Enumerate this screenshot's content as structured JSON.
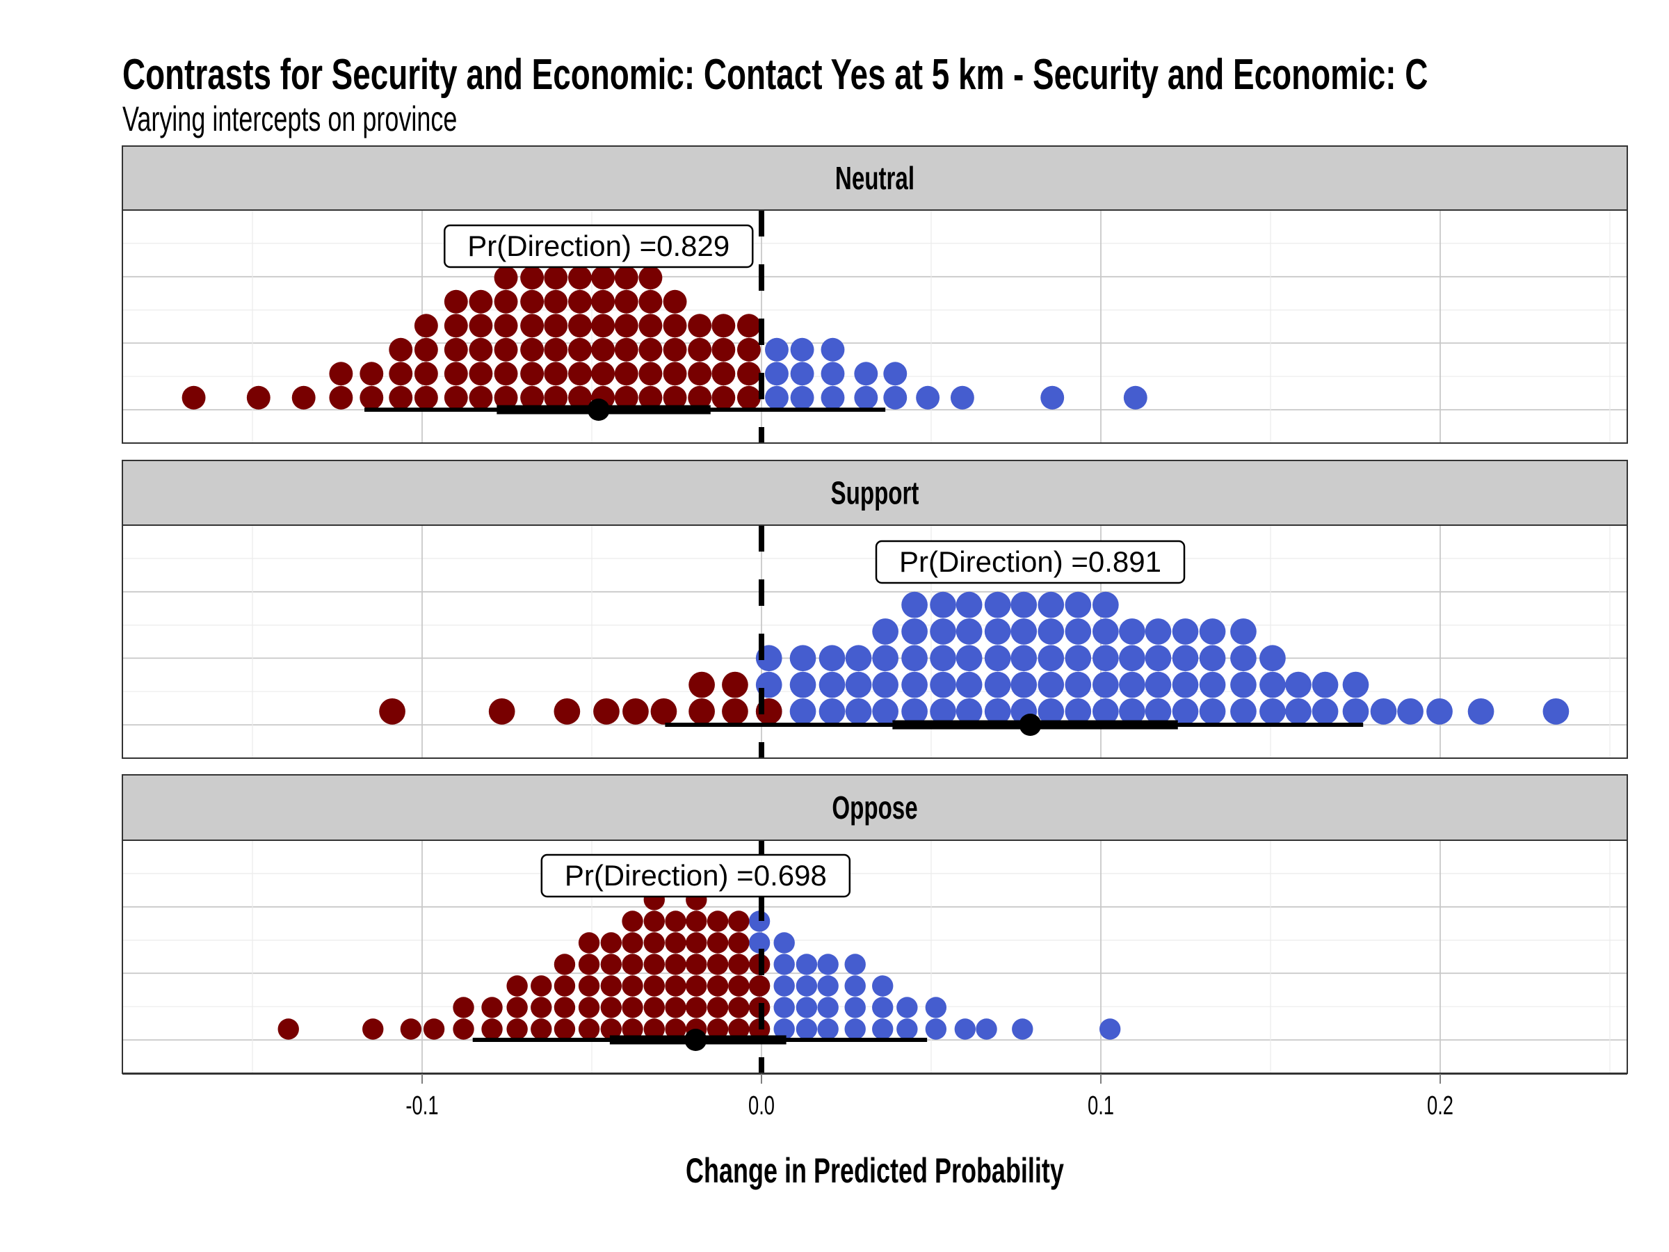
{
  "colors": {
    "negative": "#780000",
    "positive": "#455DCF",
    "strip_fill": "#CCCCCC",
    "interval": "#000000",
    "reference_line": "#000000"
  },
  "chart_data": {
    "type": "dotplot",
    "title": "Contrasts for Security and Economic: Contact Yes at 5 km - Security and Economic: C",
    "subtitle": "Varying intercepts on province",
    "xlabel": "Change in Predicted Probability",
    "ylabel": "",
    "xlim": [
      -0.19,
      0.253
    ],
    "x_ticks": [
      -0.1,
      0.0,
      0.1,
      0.2
    ],
    "x_tick_labels": [
      "-0.1",
      "0.0",
      "0.1",
      "0.2"
    ],
    "reference_line_x": 0.0,
    "grid": true,
    "legend": "none",
    "facets": [
      {
        "name": "Neutral",
        "label": "Pr(Direction) =0.829",
        "point": -0.048,
        "interval_inner": [
          -0.078,
          -0.015
        ],
        "interval_outer": [
          -0.117,
          0.0365
        ],
        "negative_bins": [
          {
            "x": -0.1673,
            "n": 1
          },
          {
            "x": -0.1482,
            "n": 1
          },
          {
            "x": -0.1349,
            "n": 1
          },
          {
            "x": -0.1239,
            "n": 2
          },
          {
            "x": -0.1149,
            "n": 2
          },
          {
            "x": -0.1063,
            "n": 3
          },
          {
            "x": -0.0988,
            "n": 4
          },
          {
            "x": -0.09,
            "n": 5
          },
          {
            "x": -0.0827,
            "n": 5
          },
          {
            "x": -0.0753,
            "n": 6
          },
          {
            "x": -0.0676,
            "n": 6
          },
          {
            "x": -0.0606,
            "n": 6
          },
          {
            "x": -0.0535,
            "n": 6
          },
          {
            "x": -0.0467,
            "n": 6
          },
          {
            "x": -0.0398,
            "n": 6
          },
          {
            "x": -0.0327,
            "n": 6
          },
          {
            "x": -0.0255,
            "n": 5
          },
          {
            "x": -0.0182,
            "n": 4
          },
          {
            "x": -0.0112,
            "n": 4
          },
          {
            "x": -0.0037,
            "n": 4
          }
        ],
        "positive_bins": [
          {
            "x": 0.0045,
            "n": 3
          },
          {
            "x": 0.012,
            "n": 3
          },
          {
            "x": 0.021,
            "n": 3
          },
          {
            "x": 0.0308,
            "n": 2
          },
          {
            "x": 0.0394,
            "n": 2
          },
          {
            "x": 0.049,
            "n": 1
          },
          {
            "x": 0.0592,
            "n": 1
          },
          {
            "x": 0.0857,
            "n": 1
          },
          {
            "x": 0.1102,
            "n": 1
          }
        ]
      },
      {
        "name": "Support",
        "label": "Pr(Direction) =0.891",
        "point": 0.0792,
        "interval_inner": [
          0.0386,
          0.1227
        ],
        "interval_outer": [
          -0.0284,
          0.1773
        ],
        "negative_bins": [
          {
            "x": -0.1088,
            "n": 1
          },
          {
            "x": -0.0765,
            "n": 1
          },
          {
            "x": -0.0573,
            "n": 1
          },
          {
            "x": -0.0457,
            "n": 1
          },
          {
            "x": -0.0371,
            "n": 1
          },
          {
            "x": -0.0288,
            "n": 1
          },
          {
            "x": -0.0176,
            "n": 2
          },
          {
            "x": -0.0078,
            "n": 2
          },
          {
            "x": 0.0022,
            "n": 1
          }
        ],
        "positive_bins": [
          {
            "x": 0.0022,
            "n": 3
          },
          {
            "x": 0.0122,
            "n": 3
          },
          {
            "x": 0.0208,
            "n": 3
          },
          {
            "x": 0.0286,
            "n": 3
          },
          {
            "x": 0.0365,
            "n": 4
          },
          {
            "x": 0.0451,
            "n": 5
          },
          {
            "x": 0.0535,
            "n": 5
          },
          {
            "x": 0.0612,
            "n": 5
          },
          {
            "x": 0.0696,
            "n": 5
          },
          {
            "x": 0.0773,
            "n": 5
          },
          {
            "x": 0.0853,
            "n": 5
          },
          {
            "x": 0.0933,
            "n": 5
          },
          {
            "x": 0.1014,
            "n": 5
          },
          {
            "x": 0.1092,
            "n": 4
          },
          {
            "x": 0.1169,
            "n": 4
          },
          {
            "x": 0.1249,
            "n": 4
          },
          {
            "x": 0.1329,
            "n": 4
          },
          {
            "x": 0.142,
            "n": 4
          },
          {
            "x": 0.1506,
            "n": 3
          },
          {
            "x": 0.1582,
            "n": 2
          },
          {
            "x": 0.1661,
            "n": 2
          },
          {
            "x": 0.1751,
            "n": 2
          },
          {
            "x": 0.1833,
            "n": 1
          },
          {
            "x": 0.1912,
            "n": 1
          },
          {
            "x": 0.1998,
            "n": 1
          },
          {
            "x": 0.212,
            "n": 1
          },
          {
            "x": 0.2341,
            "n": 1
          }
        ]
      },
      {
        "name": "Oppose",
        "label": "Pr(Direction) =0.698",
        "point": -0.0194,
        "interval_inner": [
          -0.0447,
          0.0073
        ],
        "interval_outer": [
          -0.0851,
          0.0488
        ],
        "negative_bins": [
          {
            "x": -0.1394,
            "n": 1
          },
          {
            "x": -0.1145,
            "n": 1
          },
          {
            "x": -0.1033,
            "n": 1
          },
          {
            "x": -0.0965,
            "n": 1
          },
          {
            "x": -0.0878,
            "n": 2
          },
          {
            "x": -0.0794,
            "n": 2
          },
          {
            "x": -0.072,
            "n": 3
          },
          {
            "x": -0.0649,
            "n": 3
          },
          {
            "x": -0.058,
            "n": 4
          },
          {
            "x": -0.0508,
            "n": 5
          },
          {
            "x": -0.0443,
            "n": 5
          },
          {
            "x": -0.038,
            "n": 6
          },
          {
            "x": -0.0316,
            "n": 7
          },
          {
            "x": -0.0253,
            "n": 6
          },
          {
            "x": -0.0192,
            "n": 7
          },
          {
            "x": -0.0129,
            "n": 6
          },
          {
            "x": -0.0067,
            "n": 6
          },
          {
            "x": -0.0006,
            "n": 4
          }
        ],
        "positive_bins": [
          {
            "x": -0.0006,
            "n": 6
          },
          {
            "x": 0.0067,
            "n": 5
          },
          {
            "x": 0.0133,
            "n": 4
          },
          {
            "x": 0.0196,
            "n": 4
          },
          {
            "x": 0.0276,
            "n": 4
          },
          {
            "x": 0.0357,
            "n": 3
          },
          {
            "x": 0.0429,
            "n": 2
          },
          {
            "x": 0.0514,
            "n": 2
          },
          {
            "x": 0.06,
            "n": 1
          },
          {
            "x": 0.0663,
            "n": 1
          },
          {
            "x": 0.0769,
            "n": 1
          },
          {
            "x": 0.1027,
            "n": 1
          }
        ]
      }
    ]
  }
}
